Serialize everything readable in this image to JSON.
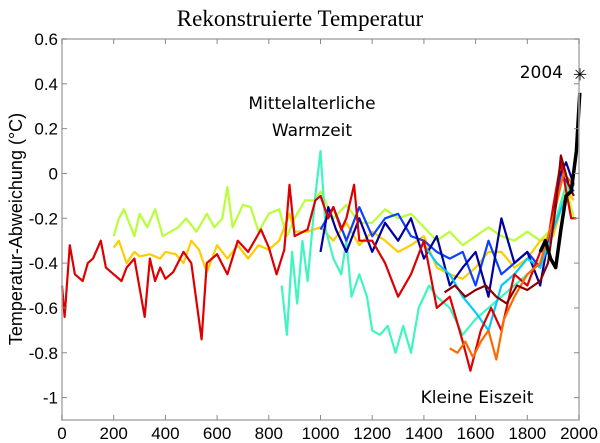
{
  "chart_data": {
    "type": "line",
    "title": "Rekonstruierte Temperatur",
    "xlabel": "",
    "ylabel": "Temperatur-Abweichung (°C)",
    "xlim": [
      0,
      2000
    ],
    "ylim": [
      -1.1,
      0.6
    ],
    "xticks": [
      "0",
      "200",
      "400",
      "600",
      "800",
      "1000",
      "1200",
      "1400",
      "1600",
      "1800",
      "2000"
    ],
    "yticks": [
      "0.6",
      "0.4",
      "0.2",
      "0",
      "-0.2",
      "-0.4",
      "-0.6",
      "-0.8",
      "-1"
    ],
    "grid": false,
    "annotations": {
      "warm_line1": "Mittelalterliche",
      "warm_line2": "Warmzeit",
      "cold": "Kleine Eiszeit",
      "marker_label": "2004",
      "marker_symbol": "✳"
    },
    "marker": {
      "x": 2004,
      "y": 0.45
    },
    "series": [
      {
        "color": "#b8ff3a",
        "x": [
          200,
          220,
          240,
          260,
          280,
          300,
          330,
          360,
          390,
          420,
          450,
          480,
          520,
          560,
          590,
          620,
          640,
          660,
          700,
          730,
          760,
          800,
          840,
          870,
          900,
          940,
          980,
          1000,
          1050,
          1100,
          1150,
          1200,
          1250,
          1300,
          1350,
          1400,
          1450,
          1500,
          1550,
          1600,
          1650,
          1700,
          1750,
          1800,
          1850,
          1900,
          1950,
          1980
        ],
        "y": [
          -0.28,
          -0.2,
          -0.16,
          -0.22,
          -0.28,
          -0.18,
          -0.24,
          -0.16,
          -0.28,
          -0.26,
          -0.24,
          -0.2,
          -0.26,
          -0.18,
          -0.24,
          -0.2,
          -0.06,
          -0.24,
          -0.14,
          -0.15,
          -0.26,
          -0.18,
          -0.16,
          -0.28,
          -0.2,
          -0.12,
          -0.12,
          -0.08,
          -0.2,
          -0.14,
          -0.22,
          -0.22,
          -0.16,
          -0.2,
          -0.18,
          -0.24,
          -0.3,
          -0.26,
          -0.32,
          -0.28,
          -0.24,
          -0.28,
          -0.3,
          -0.26,
          -0.3,
          -0.24,
          -0.06,
          -0.2
        ]
      },
      {
        "color": "#ffcc00",
        "x": [
          200,
          220,
          250,
          280,
          300,
          340,
          380,
          400,
          440,
          470,
          500,
          530,
          560,
          600,
          640,
          680,
          720,
          760,
          800,
          840,
          880,
          900,
          950,
          1000,
          1050,
          1100,
          1150,
          1200,
          1250,
          1300,
          1350,
          1400,
          1450,
          1500,
          1550,
          1600,
          1650,
          1700,
          1750,
          1800,
          1850,
          1900,
          1950,
          1980
        ],
        "y": [
          -0.33,
          -0.3,
          -0.4,
          -0.35,
          -0.37,
          -0.36,
          -0.38,
          -0.35,
          -0.36,
          -0.4,
          -0.3,
          -0.34,
          -0.44,
          -0.32,
          -0.38,
          -0.32,
          -0.38,
          -0.32,
          -0.34,
          -0.3,
          -0.18,
          -0.26,
          -0.26,
          -0.24,
          -0.3,
          -0.22,
          -0.32,
          -0.26,
          -0.3,
          -0.35,
          -0.32,
          -0.28,
          -0.42,
          -0.45,
          -0.47,
          -0.42,
          -0.35,
          -0.35,
          -0.42,
          -0.38,
          -0.3,
          -0.28,
          -0.08,
          -0.12
        ]
      },
      {
        "color": "#40f5c0",
        "x": [
          850,
          870,
          890,
          910,
          930,
          950,
          980,
          1000,
          1020,
          1050,
          1080,
          1100,
          1120,
          1150,
          1180,
          1200,
          1230,
          1260,
          1290,
          1320,
          1350,
          1380,
          1420,
          1450,
          1500,
          1550,
          1600,
          1650,
          1700,
          1750,
          1800,
          1850,
          1900,
          1950,
          1980
        ],
        "y": [
          -0.5,
          -0.72,
          -0.35,
          -0.58,
          -0.3,
          -0.48,
          -0.1,
          0.1,
          -0.25,
          -0.38,
          -0.45,
          -0.3,
          -0.55,
          -0.45,
          -0.55,
          -0.7,
          -0.72,
          -0.68,
          -0.8,
          -0.68,
          -0.8,
          -0.6,
          -0.5,
          -0.55,
          -0.6,
          -0.72,
          -0.65,
          -0.6,
          -0.55,
          -0.5,
          -0.45,
          -0.4,
          -0.25,
          -0.05,
          -0.1
        ]
      },
      {
        "color": "#1040ff",
        "x": [
          1000,
          1050,
          1100,
          1150,
          1200,
          1250,
          1300,
          1350,
          1400,
          1450,
          1500,
          1550,
          1600,
          1650,
          1700,
          1750,
          1800,
          1850,
          1900,
          1930,
          1960,
          1980
        ],
        "y": [
          -0.25,
          -0.15,
          -0.3,
          -0.15,
          -0.28,
          -0.2,
          -0.18,
          -0.28,
          -0.3,
          -0.35,
          -0.38,
          -0.35,
          -0.5,
          -0.3,
          -0.45,
          -0.4,
          -0.35,
          -0.42,
          -0.2,
          0.0,
          -0.05,
          -0.08
        ]
      },
      {
        "color": "#0000a0",
        "x": [
          1000,
          1030,
          1060,
          1100,
          1150,
          1200,
          1250,
          1300,
          1350,
          1400,
          1450,
          1500,
          1550,
          1600,
          1650,
          1700,
          1750,
          1800,
          1850,
          1880,
          1920,
          1950,
          1980
        ],
        "y": [
          -0.35,
          -0.15,
          -0.25,
          -0.35,
          -0.2,
          -0.35,
          -0.22,
          -0.3,
          -0.2,
          -0.38,
          -0.28,
          -0.5,
          -0.42,
          -0.35,
          -0.55,
          -0.2,
          -0.4,
          -0.35,
          -0.5,
          -0.3,
          -0.02,
          0.05,
          -0.05
        ]
      },
      {
        "color": "#00ccff",
        "x": [
          1400,
          1450,
          1500,
          1550,
          1600,
          1650,
          1700,
          1750,
          1800,
          1850,
          1900,
          1950,
          1980
        ],
        "y": [
          -0.32,
          -0.4,
          -0.45,
          -0.55,
          -0.62,
          -0.7,
          -0.5,
          -0.45,
          -0.38,
          -0.42,
          -0.25,
          -0.1,
          -0.05
        ]
      },
      {
        "color": "#dd0000",
        "x": [
          0,
          10,
          30,
          50,
          80,
          100,
          120,
          150,
          170,
          200,
          230,
          250,
          280,
          320,
          340,
          360,
          380,
          400,
          430,
          470,
          500,
          540,
          560,
          600,
          640,
          680,
          720,
          770,
          800,
          830,
          860,
          880,
          900,
          950,
          980,
          1000,
          1030,
          1050,
          1080,
          1100,
          1130,
          1150,
          1200,
          1250,
          1300,
          1350,
          1400,
          1450,
          1500,
          1550,
          1580,
          1620,
          1660,
          1700,
          1750,
          1800,
          1850,
          1880,
          1900,
          1930,
          1970,
          1990
        ],
        "y": [
          -0.5,
          -0.64,
          -0.32,
          -0.45,
          -0.48,
          -0.4,
          -0.38,
          -0.3,
          -0.42,
          -0.45,
          -0.48,
          -0.42,
          -0.38,
          -0.64,
          -0.38,
          -0.48,
          -0.42,
          -0.47,
          -0.44,
          -0.35,
          -0.4,
          -0.74,
          -0.4,
          -0.36,
          -0.45,
          -0.3,
          -0.35,
          -0.25,
          -0.33,
          -0.45,
          -0.34,
          -0.05,
          -0.28,
          -0.25,
          -0.12,
          -0.1,
          -0.2,
          -0.15,
          -0.25,
          -0.2,
          -0.05,
          -0.3,
          -0.3,
          -0.4,
          -0.55,
          -0.45,
          -0.3,
          -0.6,
          -0.55,
          -0.75,
          -0.88,
          -0.7,
          -0.6,
          -0.7,
          -0.45,
          -0.5,
          -0.35,
          -0.3,
          -0.15,
          0.05,
          -0.2,
          -0.2
        ]
      },
      {
        "color": "#ff6a00",
        "x": [
          1500,
          1530,
          1560,
          1590,
          1620,
          1650,
          1680,
          1710,
          1750,
          1800,
          1850,
          1900,
          1940,
          1980
        ],
        "y": [
          -0.78,
          -0.8,
          -0.75,
          -0.82,
          -0.75,
          -0.7,
          -0.83,
          -0.65,
          -0.55,
          -0.45,
          -0.4,
          -0.2,
          0.0,
          -0.05
        ]
      },
      {
        "color": "#8b0000",
        "x": [
          1480,
          1520,
          1560,
          1600,
          1640,
          1680,
          1720,
          1760,
          1800,
          1850,
          1880,
          1910,
          1930,
          1960,
          1980
        ],
        "y": [
          -0.53,
          -0.5,
          -0.55,
          -0.52,
          -0.5,
          -0.55,
          -0.58,
          -0.5,
          -0.52,
          -0.48,
          -0.4,
          -0.15,
          0.08,
          -0.05,
          -0.1
        ]
      },
      {
        "color": "#000000",
        "x": [
          1850,
          1870,
          1890,
          1910,
          1930,
          1950,
          1970,
          1990,
          2000,
          2003
        ],
        "y": [
          -0.35,
          -0.3,
          -0.38,
          -0.42,
          -0.25,
          -0.1,
          -0.08,
          0.1,
          0.3,
          0.36
        ]
      }
    ]
  }
}
